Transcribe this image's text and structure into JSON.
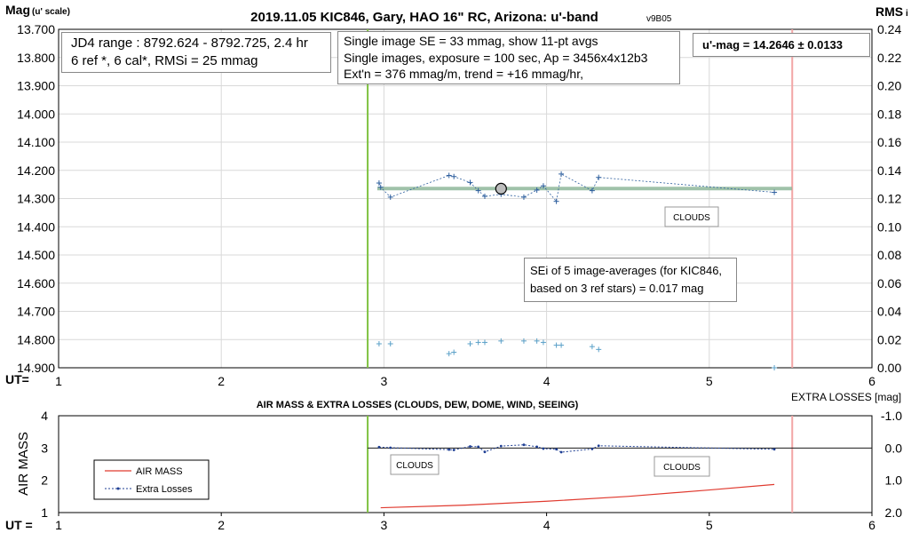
{
  "chart_data": [
    {
      "type": "scatter",
      "title": "2019.11.05 KIC846, Gary, HAO 16\" RC, Arizona: u'-band",
      "title_version": "v9B05",
      "ylabel": "Mag",
      "ylabel_unit": "(u' scale)",
      "y2label": "RMS",
      "y2label_suffix": "i",
      "xlabel": "UT=",
      "xlim": [
        1,
        6
      ],
      "ylim": [
        13.7,
        14.9
      ],
      "y_reversed": true,
      "y2lim": [
        0.0,
        0.24
      ],
      "x_ticks": [
        "1",
        "2",
        "3",
        "4",
        "5",
        "6"
      ],
      "y_ticks": [
        "13.700",
        "13.800",
        "13.900",
        "14.000",
        "14.100",
        "14.200",
        "14.300",
        "14.400",
        "14.500",
        "14.600",
        "14.700",
        "14.800",
        "14.900"
      ],
      "y2_ticks": [
        "0.24",
        "0.22",
        "0.20",
        "0.18",
        "0.16",
        "0.14",
        "0.12",
        "0.10",
        "0.08",
        "0.06",
        "0.04",
        "0.02",
        "0.00"
      ],
      "grid": true,
      "vertical_lines": [
        {
          "x": 2.9,
          "color": "#7fc241"
        },
        {
          "x": 5.51,
          "color": "#f2a6a6"
        }
      ],
      "series": [
        {
          "color": "#2e5f9e",
          "x": [
            2.97,
            2.98,
            3.04,
            3.4,
            3.43,
            3.53,
            3.58,
            3.62,
            3.72,
            3.86,
            3.94,
            3.98,
            4.06,
            4.09,
            4.28,
            4.32,
            5.4
          ],
          "y": [
            14.245,
            14.26,
            14.295,
            14.218,
            14.222,
            14.243,
            14.272,
            14.292,
            14.285,
            14.295,
            14.27,
            14.255,
            14.31,
            14.213,
            14.272,
            14.225,
            14.278
          ]
        },
        {
          "color": "#5aa0c8",
          "axis": "y2",
          "x": [
            2.97,
            3.04,
            3.4,
            3.43,
            3.53,
            3.58,
            3.62,
            3.72,
            3.86,
            3.94,
            3.98,
            4.06,
            4.09,
            4.28,
            4.32,
            5.4
          ],
          "y": [
            0.017,
            0.017,
            0.01,
            0.011,
            0.017,
            0.018,
            0.018,
            0.019,
            0.019,
            0.019,
            0.018,
            0.016,
            0.016,
            0.015,
            0.013,
            0.0
          ]
        }
      ],
      "fit_line": {
        "y": 14.2646,
        "color": "#8fb89b"
      },
      "mean_point": {
        "x": 3.72,
        "y": 14.265
      },
      "annotations": {
        "jd_box": [
          "JD4 range : 8792.624 - 8792.725,  2.4  hr",
          "6 ref *, 6 cal*, RMSi = 25 mmag"
        ],
        "info_box": [
          "Single image SE = 33 mmag, show  11-pt avgs",
          "Single images, exposure = 100 sec, Ap = 3456x4x12b3",
          "Ext'n = 376 mmag/m, trend =  +16 mmag/hr,"
        ],
        "umag_box": "u'-mag = 14.2646 ± 0.0133",
        "clouds_label": "CLOUDS",
        "sei_box": [
          "SEi of 5 image-averages (for KIC846,",
          "based on 3 ref stars) = 0.017 mag"
        ]
      }
    },
    {
      "type": "line",
      "title": "AIR MASS & EXTRA LOSSES (CLOUDS, DEW, DOME, WIND, SEEING)",
      "ylabel": "AIR MASS",
      "y2label": "EXTRA LOSSES [mag]",
      "xlabel": "UT =",
      "xlim": [
        1,
        6
      ],
      "ylim": [
        1,
        4
      ],
      "y2lim": [
        2.0,
        -1.0
      ],
      "x_ticks": [
        "1",
        "2",
        "3",
        "4",
        "5",
        "6"
      ],
      "y_ticks": [
        "4",
        "3",
        "2",
        "1"
      ],
      "y2_ticks": [
        "-1.0",
        "0.0",
        "1.0",
        "2.0"
      ],
      "legend": [
        "AIR MASS",
        "Extra Losses"
      ],
      "legend_position": "left",
      "vertical_lines": [
        {
          "x": 2.9,
          "color": "#7fc241"
        },
        {
          "x": 5.51,
          "color": "#f2a6a6"
        }
      ],
      "series": [
        {
          "name": "AIR MASS",
          "color": "#e03a2f",
          "x": [
            2.98,
            3.5,
            4.0,
            4.5,
            5.0,
            5.4
          ],
          "y": [
            1.15,
            1.23,
            1.35,
            1.5,
            1.7,
            1.87
          ]
        },
        {
          "name": "Extra Losses",
          "color": "#1f3f94",
          "x": [
            2.97,
            3.04,
            3.4,
            3.43,
            3.53,
            3.58,
            3.62,
            3.72,
            3.86,
            3.94,
            3.98,
            4.06,
            4.09,
            4.28,
            4.32,
            5.4
          ],
          "y": [
            -0.03,
            -0.01,
            0.05,
            0.06,
            -0.05,
            -0.04,
            0.12,
            -0.06,
            -0.1,
            -0.04,
            0.02,
            0.04,
            0.13,
            0.03,
            -0.07,
            0.04
          ],
          "axis": "y2"
        }
      ],
      "zero_line": {
        "y2": 0.0,
        "color": "#1a1a1a"
      },
      "annotations": {
        "clouds_label_1": "CLOUDS",
        "clouds_label_2": "CLOUDS"
      }
    }
  ]
}
